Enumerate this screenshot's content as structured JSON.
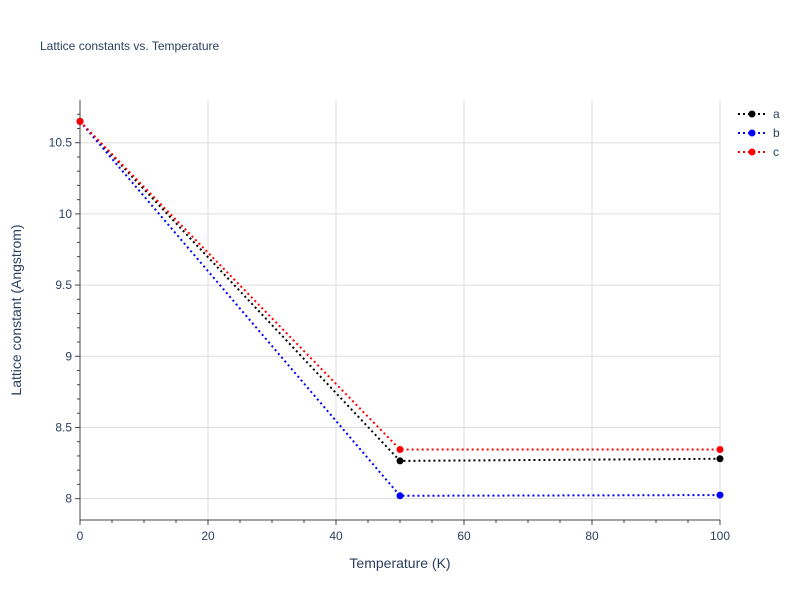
{
  "chart_data": {
    "type": "line",
    "title": "Lattice constants vs. Temperature",
    "xlabel": "Temperature (K)",
    "ylabel": "Lattice constant (Angstrom)",
    "xlim": [
      0,
      100
    ],
    "ylim": [
      7.85,
      10.8
    ],
    "xticks": [
      0,
      20,
      40,
      60,
      80,
      100
    ],
    "yticks": [
      8,
      8.5,
      9,
      9.5,
      10,
      10.5
    ],
    "ytick_labels": [
      "8",
      "8.5",
      "9",
      "9.5",
      "10",
      "10.5"
    ],
    "grid": true,
    "legend_position": "top-right",
    "x": [
      0,
      50,
      100
    ],
    "series": [
      {
        "name": "a",
        "color": "#000000",
        "values": [
          10.65,
          8.265,
          8.28
        ]
      },
      {
        "name": "b",
        "color": "#0000ff",
        "values": [
          10.65,
          8.02,
          8.025
        ]
      },
      {
        "name": "c",
        "color": "#ff0000",
        "values": [
          10.65,
          8.345,
          8.345
        ]
      }
    ]
  }
}
